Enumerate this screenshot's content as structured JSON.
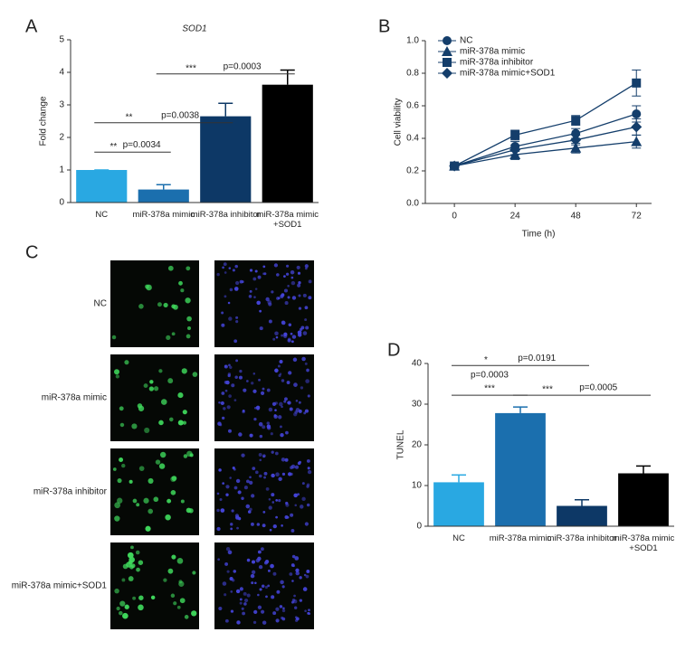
{
  "chart_data": [
    {
      "panel_label": "A",
      "type": "bar",
      "title": "SOD1",
      "y_label": "Fold change",
      "categories": [
        "NC",
        "miR-378a mimic",
        "miR-378a inhibitor",
        "miR-378a mimic +SOD1"
      ],
      "values": [
        1.0,
        0.4,
        2.65,
        3.62
      ],
      "errors": [
        0,
        0.15,
        0.4,
        0.45
      ],
      "colors": [
        "#29a8e2",
        "#1b6fae",
        "#0d3866",
        "#000000"
      ],
      "ylim": [
        0,
        5
      ],
      "yticks": [
        0,
        1,
        2,
        3,
        4,
        5
      ],
      "comparisons": [
        {
          "stars": "**",
          "p": "p=0.0034"
        },
        {
          "stars": "**",
          "p": "p=0.0038"
        },
        {
          "stars": "***",
          "p": "p=0.0003"
        }
      ]
    },
    {
      "panel_label": "B",
      "type": "line",
      "x_label": "Time (h)",
      "y_label": "Cell viability",
      "x": [
        0,
        24,
        48,
        72
      ],
      "xlim": [
        -11.5,
        78
      ],
      "xticks": [
        0,
        24,
        48,
        72
      ],
      "ylim": [
        0,
        1
      ],
      "yticks": [
        {
          "value": 0,
          "label": "0.0"
        },
        0.2,
        0.4,
        0.6,
        0.8,
        {
          "value": 1,
          "label": "1.0"
        }
      ],
      "legend": "upper left",
      "color": "#143e6b",
      "series": [
        {
          "name": "NC",
          "marker": "circle",
          "values": [
            0.23,
            0.35,
            0.43,
            0.55
          ],
          "errors": [
            0.01,
            0.03,
            0.03,
            0.05
          ]
        },
        {
          "name": "miR-378a mimic",
          "marker": "triangle",
          "values": [
            0.23,
            0.3,
            0.34,
            0.38
          ],
          "errors": [
            0.01,
            0.03,
            0.03,
            0.04
          ]
        },
        {
          "name": "miR-378a inhibitor",
          "marker": "square",
          "values": [
            0.23,
            0.42,
            0.51,
            0.74
          ],
          "errors": [
            0.01,
            0.03,
            0.03,
            0.08
          ]
        },
        {
          "name": "miR-378a mimic+SOD1",
          "marker": "diamond",
          "values": [
            0.23,
            0.33,
            0.39,
            0.47
          ],
          "errors": [
            0.01,
            0.03,
            0.03,
            0.05
          ]
        }
      ]
    },
    {
      "panel_label": "C",
      "type": "image-grid",
      "rows": [
        "NC",
        "miR-378a mimic",
        "miR-378a inhibitor",
        "miR-378a mimic+SOD1"
      ]
    },
    {
      "panel_label": "D",
      "type": "bar",
      "y_label": "TUNEL",
      "categories": [
        "NC",
        "miR-378a mimic",
        "miR-378a inhibitor",
        "miR-378a mimic +SOD1"
      ],
      "values": [
        10.8,
        27.8,
        5.0,
        13.0
      ],
      "errors": [
        1.8,
        1.5,
        1.5,
        1.8
      ],
      "colors": [
        "#29a8e2",
        "#1b6fae",
        "#0d3866",
        "#000000"
      ],
      "ylim": [
        0,
        40
      ],
      "yticks": [
        0,
        10,
        20,
        30,
        40
      ],
      "comparisons": [
        {
          "stars": "*",
          "p": "p=0.0191"
        },
        {
          "stars": "***",
          "p": "p=0.0003"
        },
        {
          "stars": "***",
          "p": "p=0.0005"
        }
      ]
    }
  ]
}
